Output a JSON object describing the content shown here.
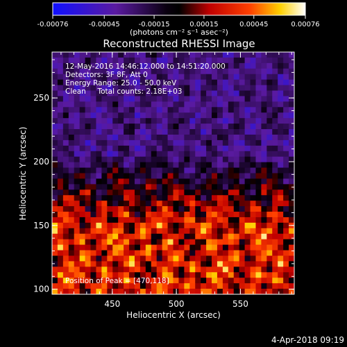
{
  "chart_data": {
    "type": "heatmap",
    "title": "Reconstructed RHESSI Image",
    "xlabel": "Heliocentric X (arcsec)",
    "ylabel": "Heliocentric Y (arcsec)",
    "xlim": [
      403,
      592
    ],
    "ylim": [
      96,
      286
    ],
    "x_ticks": [
      450,
      500,
      550
    ],
    "y_ticks": [
      100,
      150,
      200,
      250
    ],
    "colorbar": {
      "range": [
        -0.00076,
        0.00076
      ],
      "ticks": [
        -0.00076,
        -0.00045,
        -0.00015,
        0.00015,
        0.00045,
        0.00076
      ],
      "tick_labels": [
        "-0.00076",
        "-0.00045",
        "-0.00015",
        "0.00015",
        "0.00045",
        "0.00076"
      ],
      "unit_label": "(photons cm⁻² s⁻¹ asec⁻²)",
      "colormap": "blue-black-red-yellow-white"
    },
    "annotations": [
      "12-May-2016 14:46:12.000 to 14:51:20.000",
      "Detectors: 3F 8F, Att 0",
      "Energy Range: 25.0 - 50.0 keV",
      "Clean     Total counts: 2.18E+03"
    ],
    "peak_label": "Position of Peak = [470,118]",
    "peak": [
      470,
      118
    ],
    "grid_size": 44,
    "footer": "4-Apr-2018 09:19"
  }
}
